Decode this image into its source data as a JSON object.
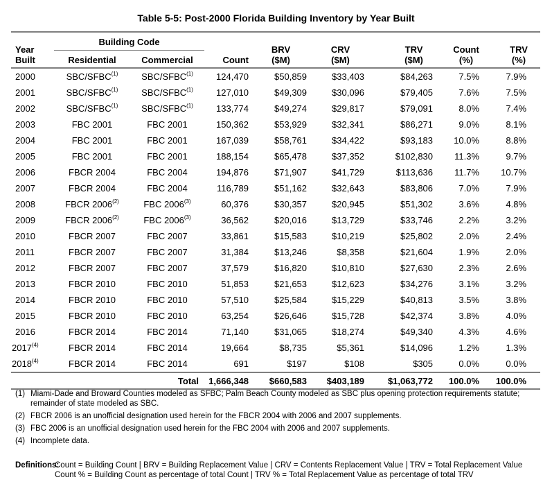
{
  "title": "Table 5-5: Post-2000 Florida Building Inventory by Year Built",
  "headers": {
    "year": "Year Built",
    "building_code": "Building Code",
    "residential": "Residential",
    "commercial": "Commercial",
    "count": "Count",
    "brv": [
      "BRV",
      "($M)"
    ],
    "crv": [
      "CRV",
      "($M)"
    ],
    "trv": [
      "TRV",
      "($M)"
    ],
    "count_pct": [
      "Count",
      "(%)"
    ],
    "trv_pct": [
      "TRV",
      "(%)"
    ]
  },
  "rows": [
    {
      "year": "2000",
      "year_sup": "",
      "res": "SBC/SFBC",
      "res_sup": "(1)",
      "com": "SBC/SFBC",
      "com_sup": "(1)",
      "count": "124,470",
      "brv": "$50,859",
      "crv": "$33,403",
      "trv": "$84,263",
      "count_pct": "7.5%",
      "trv_pct": "7.9%"
    },
    {
      "year": "2001",
      "year_sup": "",
      "res": "SBC/SFBC",
      "res_sup": "(1)",
      "com": "SBC/SFBC",
      "com_sup": "(1)",
      "count": "127,010",
      "brv": "$49,309",
      "crv": "$30,096",
      "trv": "$79,405",
      "count_pct": "7.6%",
      "trv_pct": "7.5%"
    },
    {
      "year": "2002",
      "year_sup": "",
      "res": "SBC/SFBC",
      "res_sup": "(1)",
      "com": "SBC/SFBC",
      "com_sup": "(1)",
      "count": "133,774",
      "brv": "$49,274",
      "crv": "$29,817",
      "trv": "$79,091",
      "count_pct": "8.0%",
      "trv_pct": "7.4%"
    },
    {
      "year": "2003",
      "year_sup": "",
      "res": "FBC 2001",
      "res_sup": "",
      "com": "FBC 2001",
      "com_sup": "",
      "count": "150,362",
      "brv": "$53,929",
      "crv": "$32,341",
      "trv": "$86,271",
      "count_pct": "9.0%",
      "trv_pct": "8.1%"
    },
    {
      "year": "2004",
      "year_sup": "",
      "res": "FBC 2001",
      "res_sup": "",
      "com": "FBC 2001",
      "com_sup": "",
      "count": "167,039",
      "brv": "$58,761",
      "crv": "$34,422",
      "trv": "$93,183",
      "count_pct": "10.0%",
      "trv_pct": "8.8%"
    },
    {
      "year": "2005",
      "year_sup": "",
      "res": "FBC 2001",
      "res_sup": "",
      "com": "FBC 2001",
      "com_sup": "",
      "count": "188,154",
      "brv": "$65,478",
      "crv": "$37,352",
      "trv": "$102,830",
      "count_pct": "11.3%",
      "trv_pct": "9.7%"
    },
    {
      "year": "2006",
      "year_sup": "",
      "res": "FBCR 2004",
      "res_sup": "",
      "com": "FBC 2004",
      "com_sup": "",
      "count": "194,876",
      "brv": "$71,907",
      "crv": "$41,729",
      "trv": "$113,636",
      "count_pct": "11.7%",
      "trv_pct": "10.7%"
    },
    {
      "year": "2007",
      "year_sup": "",
      "res": "FBCR 2004",
      "res_sup": "",
      "com": "FBC 2004",
      "com_sup": "",
      "count": "116,789",
      "brv": "$51,162",
      "crv": "$32,643",
      "trv": "$83,806",
      "count_pct": "7.0%",
      "trv_pct": "7.9%"
    },
    {
      "year": "2008",
      "year_sup": "",
      "res": "FBCR 2006",
      "res_sup": "(2)",
      "com": "FBC 2006",
      "com_sup": "(3)",
      "count": "60,376",
      "brv": "$30,357",
      "crv": "$20,945",
      "trv": "$51,302",
      "count_pct": "3.6%",
      "trv_pct": "4.8%"
    },
    {
      "year": "2009",
      "year_sup": "",
      "res": "FBCR 2006",
      "res_sup": "(2)",
      "com": "FBC 2006",
      "com_sup": "(3)",
      "count": "36,562",
      "brv": "$20,016",
      "crv": "$13,729",
      "trv": "$33,746",
      "count_pct": "2.2%",
      "trv_pct": "3.2%"
    },
    {
      "year": "2010",
      "year_sup": "",
      "res": "FBCR 2007",
      "res_sup": "",
      "com": "FBC 2007",
      "com_sup": "",
      "count": "33,861",
      "brv": "$15,583",
      "crv": "$10,219",
      "trv": "$25,802",
      "count_pct": "2.0%",
      "trv_pct": "2.4%"
    },
    {
      "year": "2011",
      "year_sup": "",
      "res": "FBCR 2007",
      "res_sup": "",
      "com": "FBC 2007",
      "com_sup": "",
      "count": "31,384",
      "brv": "$13,246",
      "crv": "$8,358",
      "trv": "$21,604",
      "count_pct": "1.9%",
      "trv_pct": "2.0%"
    },
    {
      "year": "2012",
      "year_sup": "",
      "res": "FBCR 2007",
      "res_sup": "",
      "com": "FBC 2007",
      "com_sup": "",
      "count": "37,579",
      "brv": "$16,820",
      "crv": "$10,810",
      "trv": "$27,630",
      "count_pct": "2.3%",
      "trv_pct": "2.6%"
    },
    {
      "year": "2013",
      "year_sup": "",
      "res": "FBCR 2010",
      "res_sup": "",
      "com": "FBC 2010",
      "com_sup": "",
      "count": "51,853",
      "brv": "$21,653",
      "crv": "$12,623",
      "trv": "$34,276",
      "count_pct": "3.1%",
      "trv_pct": "3.2%"
    },
    {
      "year": "2014",
      "year_sup": "",
      "res": "FBCR 2010",
      "res_sup": "",
      "com": "FBC 2010",
      "com_sup": "",
      "count": "57,510",
      "brv": "$25,584",
      "crv": "$15,229",
      "trv": "$40,813",
      "count_pct": "3.5%",
      "trv_pct": "3.8%"
    },
    {
      "year": "2015",
      "year_sup": "",
      "res": "FBCR 2010",
      "res_sup": "",
      "com": "FBC 2010",
      "com_sup": "",
      "count": "63,254",
      "brv": "$26,646",
      "crv": "$15,728",
      "trv": "$42,374",
      "count_pct": "3.8%",
      "trv_pct": "4.0%"
    },
    {
      "year": "2016",
      "year_sup": "",
      "res": "FBCR 2014",
      "res_sup": "",
      "com": "FBC 2014",
      "com_sup": "",
      "count": "71,140",
      "brv": "$31,065",
      "crv": "$18,274",
      "trv": "$49,340",
      "count_pct": "4.3%",
      "trv_pct": "4.6%"
    },
    {
      "year": "2017",
      "year_sup": "(4)",
      "res": "FBCR 2014",
      "res_sup": "",
      "com": "FBC 2014",
      "com_sup": "",
      "count": "19,664",
      "brv": "$8,735",
      "crv": "$5,361",
      "trv": "$14,096",
      "count_pct": "1.2%",
      "trv_pct": "1.3%"
    },
    {
      "year": "2018",
      "year_sup": "(4)",
      "res": "FBCR 2014",
      "res_sup": "",
      "com": "FBC 2014",
      "com_sup": "",
      "count": "691",
      "brv": "$197",
      "crv": "$108",
      "trv": "$305",
      "count_pct": "0.0%",
      "trv_pct": "0.0%"
    }
  ],
  "total": {
    "label": "Total",
    "count": "1,666,348",
    "brv": "$660,583",
    "crv": "$403,189",
    "trv": "$1,063,772",
    "count_pct": "100.0%",
    "trv_pct": "100.0%"
  },
  "footnotes": [
    {
      "num": "(1)",
      "text": "Miami-Dade and Broward Counties modeled as SFBC; Palm Beach County modeled as SBC plus opening protection requirements statute; remainder of state modeled as SBC."
    },
    {
      "num": "(2)",
      "text": "FBCR 2006 is an unofficial designation used herein for the FBCR 2004 with 2006 and 2007 supplements."
    },
    {
      "num": "(3)",
      "text": "FBC 2006 is an unofficial designation used herein for the FBC 2004 with 2006 and 2007 supplements."
    },
    {
      "num": "(4)",
      "text": "Incomplete data."
    }
  ],
  "definitions": {
    "label": "Definitions:",
    "lines": [
      "Count = Building Count | BRV = Building Replacement Value | CRV = Contents Replacement Value | TRV = Total Replacement Value",
      "Count % = Building Count as percentage of total Count | TRV % = Total Replacement Value as percentage of total TRV"
    ]
  }
}
